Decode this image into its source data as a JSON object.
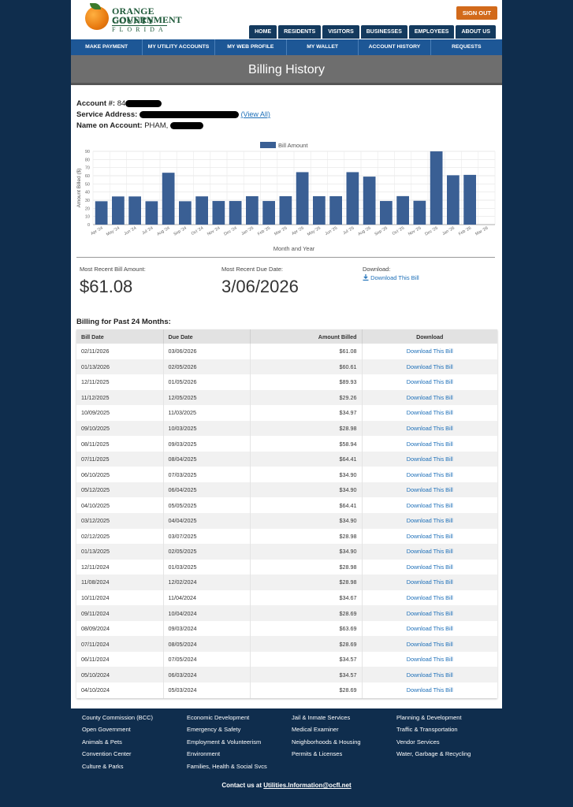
{
  "logo": {
    "line1": "ORANGE COUNTY",
    "line2": "GOVERNMENT",
    "line3": "FLORIDA"
  },
  "header": {
    "sign_out": "SIGN OUT",
    "top_nav": [
      "HOME",
      "RESIDENTS",
      "VISITORS",
      "BUSINESSES",
      "EMPLOYEES",
      "ABOUT US"
    ],
    "sub_nav": [
      "MAKE PAYMENT",
      "MY UTILITY ACCOUNTS",
      "MY WEB PROFILE",
      "MY WALLET",
      "ACCOUNT HISTORY",
      "REQUESTS"
    ]
  },
  "page_title": "Billing History",
  "account": {
    "number_label": "Account #:",
    "number_prefix": "84",
    "address_label": "Service Address:",
    "view_all": "(View All)",
    "name_label": "Name on Account:",
    "name_prefix": "PHAM,"
  },
  "chart_data": {
    "type": "bar",
    "legend": "Bill Amount",
    "ylabel": "Amount Billed ($)",
    "xlabel": "Month and Year",
    "ylim": [
      0,
      90
    ],
    "yticks": [
      0,
      10,
      20,
      30,
      40,
      50,
      60,
      70,
      80,
      90
    ],
    "categories": [
      "Apr '24",
      "May '24",
      "Jun '24",
      "Jul '24",
      "Aug '24",
      "Sep '24",
      "Oct '24",
      "Nov '24",
      "Dec '24",
      "Jan '25",
      "Feb '25",
      "Mar '25",
      "Apr '25",
      "May '25",
      "Jun '25",
      "Jul '25",
      "Aug '25",
      "Sep '25",
      "Oct '25",
      "Nov '25",
      "Dec '25",
      "Jan '26",
      "Feb '26",
      "Mar '26"
    ],
    "values": [
      28.69,
      34.57,
      34.57,
      28.69,
      63.69,
      28.69,
      34.67,
      28.98,
      28.98,
      34.9,
      28.98,
      34.9,
      64.41,
      34.9,
      34.9,
      64.41,
      58.94,
      28.98,
      34.97,
      29.26,
      89.93,
      60.61,
      61.08,
      null
    ],
    "bar_color": "#3a5f94"
  },
  "summary": {
    "recent_amount_label": "Most Recent Bill Amount:",
    "recent_amount": "$61.08",
    "due_date_label": "Most Recent Due Date:",
    "due_date": "3/06/2026",
    "download_label": "Download:",
    "download_link": "Download This Bill"
  },
  "billing": {
    "heading": "Billing for Past 24 Months:",
    "columns": [
      "Bill Date",
      "Due Date",
      "Amount Billed",
      "Download"
    ],
    "link_text": "Download This Bill",
    "rows": [
      [
        "02/11/2026",
        "03/06/2026",
        "$61.08"
      ],
      [
        "01/13/2026",
        "02/05/2026",
        "$60.61"
      ],
      [
        "12/11/2025",
        "01/05/2026",
        "$89.93"
      ],
      [
        "11/12/2025",
        "12/05/2025",
        "$29.26"
      ],
      [
        "10/09/2025",
        "11/03/2025",
        "$34.97"
      ],
      [
        "09/10/2025",
        "10/03/2025",
        "$28.98"
      ],
      [
        "08/11/2025",
        "09/03/2025",
        "$58.94"
      ],
      [
        "07/11/2025",
        "08/04/2025",
        "$64.41"
      ],
      [
        "06/10/2025",
        "07/03/2025",
        "$34.90"
      ],
      [
        "05/12/2025",
        "06/04/2025",
        "$34.90"
      ],
      [
        "04/10/2025",
        "05/05/2025",
        "$64.41"
      ],
      [
        "03/12/2025",
        "04/04/2025",
        "$34.90"
      ],
      [
        "02/12/2025",
        "03/07/2025",
        "$28.98"
      ],
      [
        "01/13/2025",
        "02/05/2025",
        "$34.90"
      ],
      [
        "12/11/2024",
        "01/03/2025",
        "$28.98"
      ],
      [
        "11/08/2024",
        "12/02/2024",
        "$28.98"
      ],
      [
        "10/11/2024",
        "11/04/2024",
        "$34.67"
      ],
      [
        "09/11/2024",
        "10/04/2024",
        "$28.69"
      ],
      [
        "08/09/2024",
        "09/03/2024",
        "$63.69"
      ],
      [
        "07/11/2024",
        "08/05/2024",
        "$28.69"
      ],
      [
        "06/11/2024",
        "07/05/2024",
        "$34.57"
      ],
      [
        "05/10/2024",
        "06/03/2024",
        "$34.57"
      ],
      [
        "04/10/2024",
        "05/03/2024",
        "$28.69"
      ]
    ]
  },
  "footer": {
    "links": [
      "County Commission (BCC)",
      "Economic Development",
      "Jail & Inmate Services",
      "Planning & Development",
      "Open Government",
      "Emergency & Safety",
      "Medical Examiner",
      "Traffic & Transportation",
      "Animals & Pets",
      "Employment & Volunteerism",
      "Neighborhoods & Housing",
      "Vendor Services",
      "Convention Center",
      "Environment",
      "Permits & Licenses",
      "Water, Garbage & Recycling",
      "Culture & Parks",
      "Families, Health & Social Svcs"
    ],
    "contact_label": "Contact us at",
    "contact_email": "Utilities.Information@ocfl.net"
  }
}
